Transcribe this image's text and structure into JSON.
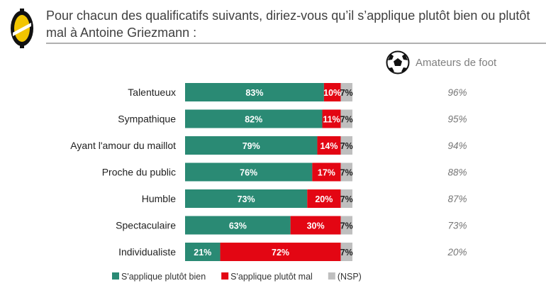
{
  "title": "Pour chacun des qualificatifs suivants, diriez-vous qu’il s’applique plutôt bien ou plutôt mal à Antoine Griezmann :",
  "colors": {
    "bien": "#2a8a74",
    "mal": "#e30613",
    "nsp": "#bfbfbf",
    "logo_yellow": "#f2c500",
    "logo_black": "#111111"
  },
  "chart_data": {
    "type": "bar",
    "orientation": "horizontal",
    "stacked": true,
    "title": "Pour chacun des qualificatifs suivants, diriez-vous qu’il s’applique plutôt bien ou plutôt mal à Antoine Griezmann :",
    "categories": [
      "Talentueux",
      "Sympathique",
      "Ayant l'amour du maillot",
      "Proche du public",
      "Humble",
      "Spectaculaire",
      "Individualiste"
    ],
    "series": [
      {
        "name": "S'applique plutôt bien",
        "values": [
          83,
          82,
          79,
          76,
          73,
          63,
          21
        ]
      },
      {
        "name": "S'applique plutôt mal",
        "values": [
          10,
          11,
          14,
          17,
          20,
          30,
          72
        ]
      },
      {
        "name": "(NSP)",
        "values": [
          7,
          7,
          7,
          7,
          7,
          7,
          7
        ]
      }
    ],
    "xlim": [
      0,
      100
    ],
    "unit": "%",
    "legend": "bottom",
    "side_column": {
      "title": "Amateurs de foot",
      "icon": "soccer-ball-icon",
      "values": [
        "96%",
        "95%",
        "94%",
        "88%",
        "87%",
        "73%",
        "20%"
      ]
    }
  }
}
